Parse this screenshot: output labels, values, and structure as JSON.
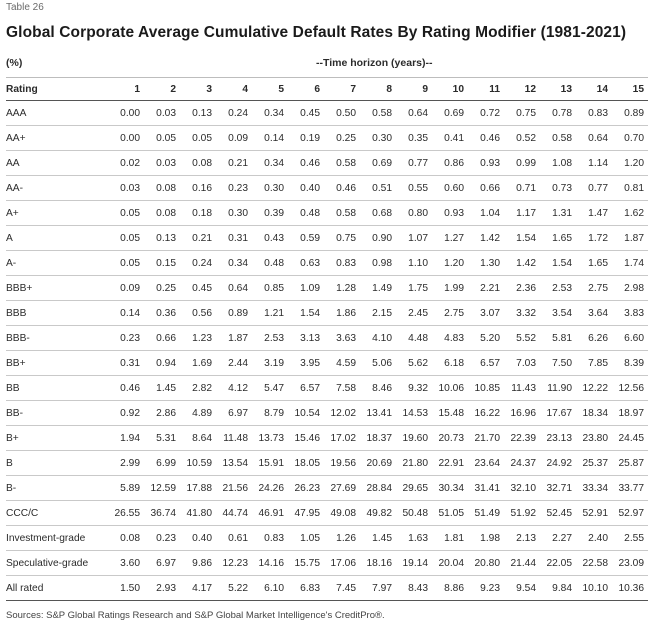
{
  "table_label": "Table 26",
  "title": "Global Corporate Average Cumulative Default Rates By Rating Modifier (1981-2021)",
  "unit": "(%)",
  "horizon_label": "--Time horizon (years)--",
  "rating_header": "Rating",
  "years": [
    "1",
    "2",
    "3",
    "4",
    "5",
    "6",
    "7",
    "8",
    "9",
    "10",
    "11",
    "12",
    "13",
    "14",
    "15"
  ],
  "rows": [
    {
      "rating": "AAA",
      "values": [
        "0.00",
        "0.03",
        "0.13",
        "0.24",
        "0.34",
        "0.45",
        "0.50",
        "0.58",
        "0.64",
        "0.69",
        "0.72",
        "0.75",
        "0.78",
        "0.83",
        "0.89"
      ]
    },
    {
      "rating": "AA+",
      "values": [
        "0.00",
        "0.05",
        "0.05",
        "0.09",
        "0.14",
        "0.19",
        "0.25",
        "0.30",
        "0.35",
        "0.41",
        "0.46",
        "0.52",
        "0.58",
        "0.64",
        "0.70"
      ]
    },
    {
      "rating": "AA",
      "values": [
        "0.02",
        "0.03",
        "0.08",
        "0.21",
        "0.34",
        "0.46",
        "0.58",
        "0.69",
        "0.77",
        "0.86",
        "0.93",
        "0.99",
        "1.08",
        "1.14",
        "1.20"
      ]
    },
    {
      "rating": "AA-",
      "values": [
        "0.03",
        "0.08",
        "0.16",
        "0.23",
        "0.30",
        "0.40",
        "0.46",
        "0.51",
        "0.55",
        "0.60",
        "0.66",
        "0.71",
        "0.73",
        "0.77",
        "0.81"
      ]
    },
    {
      "rating": "A+",
      "values": [
        "0.05",
        "0.08",
        "0.18",
        "0.30",
        "0.39",
        "0.48",
        "0.58",
        "0.68",
        "0.80",
        "0.93",
        "1.04",
        "1.17",
        "1.31",
        "1.47",
        "1.62"
      ]
    },
    {
      "rating": "A",
      "values": [
        "0.05",
        "0.13",
        "0.21",
        "0.31",
        "0.43",
        "0.59",
        "0.75",
        "0.90",
        "1.07",
        "1.27",
        "1.42",
        "1.54",
        "1.65",
        "1.72",
        "1.87"
      ]
    },
    {
      "rating": "A-",
      "values": [
        "0.05",
        "0.15",
        "0.24",
        "0.34",
        "0.48",
        "0.63",
        "0.83",
        "0.98",
        "1.10",
        "1.20",
        "1.30",
        "1.42",
        "1.54",
        "1.65",
        "1.74"
      ]
    },
    {
      "rating": "BBB+",
      "values": [
        "0.09",
        "0.25",
        "0.45",
        "0.64",
        "0.85",
        "1.09",
        "1.28",
        "1.49",
        "1.75",
        "1.99",
        "2.21",
        "2.36",
        "2.53",
        "2.75",
        "2.98"
      ]
    },
    {
      "rating": "BBB",
      "values": [
        "0.14",
        "0.36",
        "0.56",
        "0.89",
        "1.21",
        "1.54",
        "1.86",
        "2.15",
        "2.45",
        "2.75",
        "3.07",
        "3.32",
        "3.54",
        "3.64",
        "3.83"
      ]
    },
    {
      "rating": "BBB-",
      "values": [
        "0.23",
        "0.66",
        "1.23",
        "1.87",
        "2.53",
        "3.13",
        "3.63",
        "4.10",
        "4.48",
        "4.83",
        "5.20",
        "5.52",
        "5.81",
        "6.26",
        "6.60"
      ]
    },
    {
      "rating": "BB+",
      "values": [
        "0.31",
        "0.94",
        "1.69",
        "2.44",
        "3.19",
        "3.95",
        "4.59",
        "5.06",
        "5.62",
        "6.18",
        "6.57",
        "7.03",
        "7.50",
        "7.85",
        "8.39"
      ]
    },
    {
      "rating": "BB",
      "values": [
        "0.46",
        "1.45",
        "2.82",
        "4.12",
        "5.47",
        "6.57",
        "7.58",
        "8.46",
        "9.32",
        "10.06",
        "10.85",
        "11.43",
        "11.90",
        "12.22",
        "12.56"
      ]
    },
    {
      "rating": "BB-",
      "values": [
        "0.92",
        "2.86",
        "4.89",
        "6.97",
        "8.79",
        "10.54",
        "12.02",
        "13.41",
        "14.53",
        "15.48",
        "16.22",
        "16.96",
        "17.67",
        "18.34",
        "18.97"
      ]
    },
    {
      "rating": "B+",
      "values": [
        "1.94",
        "5.31",
        "8.64",
        "11.48",
        "13.73",
        "15.46",
        "17.02",
        "18.37",
        "19.60",
        "20.73",
        "21.70",
        "22.39",
        "23.13",
        "23.80",
        "24.45"
      ]
    },
    {
      "rating": "B",
      "values": [
        "2.99",
        "6.99",
        "10.59",
        "13.54",
        "15.91",
        "18.05",
        "19.56",
        "20.69",
        "21.80",
        "22.91",
        "23.64",
        "24.37",
        "24.92",
        "25.37",
        "25.87"
      ]
    },
    {
      "rating": "B-",
      "values": [
        "5.89",
        "12.59",
        "17.88",
        "21.56",
        "24.26",
        "26.23",
        "27.69",
        "28.84",
        "29.65",
        "30.34",
        "31.41",
        "32.10",
        "32.71",
        "33.34",
        "33.77"
      ]
    },
    {
      "rating": "CCC/C",
      "values": [
        "26.55",
        "36.74",
        "41.80",
        "44.74",
        "46.91",
        "47.95",
        "49.08",
        "49.82",
        "50.48",
        "51.05",
        "51.49",
        "51.92",
        "52.45",
        "52.91",
        "52.97"
      ]
    },
    {
      "rating": "Investment-grade",
      "values": [
        "0.08",
        "0.23",
        "0.40",
        "0.61",
        "0.83",
        "1.05",
        "1.26",
        "1.45",
        "1.63",
        "1.81",
        "1.98",
        "2.13",
        "2.27",
        "2.40",
        "2.55"
      ]
    },
    {
      "rating": "Speculative-grade",
      "values": [
        "3.60",
        "6.97",
        "9.86",
        "12.23",
        "14.16",
        "15.75",
        "17.06",
        "18.16",
        "19.14",
        "20.04",
        "20.80",
        "21.44",
        "22.05",
        "22.58",
        "23.09"
      ]
    },
    {
      "rating": "All rated",
      "values": [
        "1.50",
        "2.93",
        "4.17",
        "5.22",
        "6.10",
        "6.83",
        "7.45",
        "7.97",
        "8.43",
        "8.86",
        "9.23",
        "9.54",
        "9.84",
        "10.10",
        "10.36"
      ]
    }
  ],
  "source": "Sources: S&P Global Ratings Research and S&P Global Market Intelligence's CreditPro®."
}
